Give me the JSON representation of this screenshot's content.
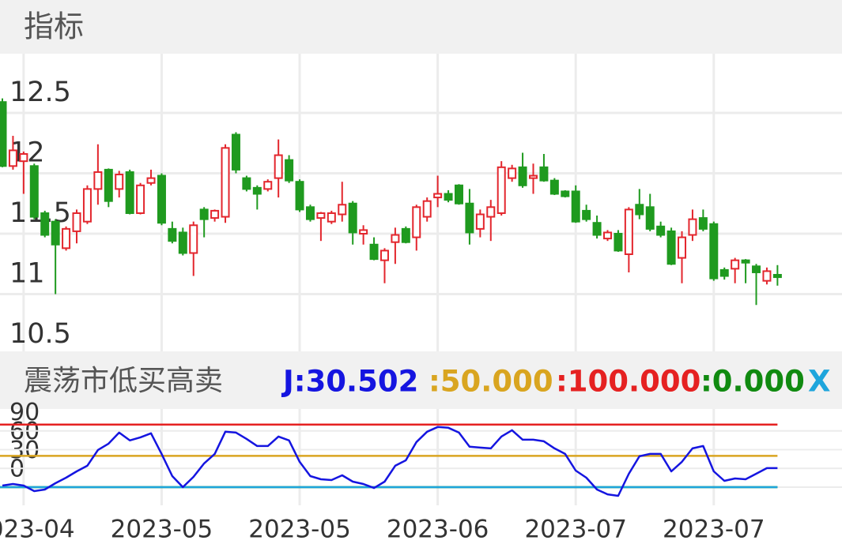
{
  "header": {
    "title": "指标"
  },
  "chart_data": [
    {
      "type": "candlestick",
      "categories": [
        null,
        null,
        "2023-04",
        null,
        null,
        null,
        null,
        null,
        null,
        null,
        null,
        null,
        null,
        null,
        null,
        "2023-05",
        null,
        null,
        null,
        null,
        null,
        null,
        null,
        null,
        null,
        null,
        null,
        null,
        "2023-05",
        null,
        null,
        null,
        null,
        null,
        null,
        null,
        null,
        null,
        null,
        null,
        null,
        "2023-06",
        null,
        null,
        null,
        null,
        null,
        null,
        null,
        null,
        null,
        null,
        null,
        null,
        "2023-07",
        null,
        null,
        null,
        null,
        null,
        null,
        null,
        null,
        null,
        null,
        null,
        null,
        "2023-07",
        null,
        null,
        null,
        null,
        null,
        null
      ],
      "open": [
        12.59,
        12.06,
        12.1,
        12.06,
        11.67,
        11.6,
        11.38,
        11.52,
        11.6,
        11.87,
        12.03,
        11.87,
        12.01,
        11.67,
        11.92,
        11.98,
        11.54,
        11.51,
        11.34,
        11.7,
        11.63,
        11.64,
        12.32,
        11.96,
        11.88,
        11.87,
        11.96,
        12.11,
        11.93,
        11.72,
        11.63,
        11.6,
        11.66,
        11.75,
        11.5,
        11.41,
        11.28,
        11.43,
        11.54,
        11.47,
        11.64,
        11.8,
        11.83,
        11.9,
        11.75,
        11.54,
        11.64,
        11.67,
        11.96,
        12.05,
        11.96,
        12.05,
        11.94,
        11.85,
        11.85,
        11.69,
        11.59,
        11.46,
        11.5,
        11.33,
        11.74,
        11.72,
        11.56,
        11.52,
        11.3,
        11.49,
        11.63,
        11.58,
        11.2,
        11.21,
        11.28,
        11.23,
        11.11,
        11.16
      ],
      "high": [
        12.62,
        12.31,
        12.18,
        12.08,
        11.69,
        11.62,
        11.56,
        11.7,
        11.9,
        12.24,
        12.04,
        12.02,
        12.03,
        11.92,
        12.03,
        12.0,
        11.6,
        11.55,
        11.6,
        11.72,
        11.7,
        12.24,
        12.34,
        11.98,
        11.9,
        11.95,
        12.28,
        12.15,
        11.95,
        11.74,
        11.68,
        11.69,
        11.93,
        11.77,
        11.57,
        11.47,
        11.38,
        11.55,
        11.56,
        11.74,
        11.8,
        11.98,
        11.86,
        11.91,
        11.87,
        11.7,
        11.78,
        12.1,
        12.07,
        12.17,
        12.08,
        12.16,
        11.96,
        11.86,
        11.9,
        11.74,
        11.65,
        11.53,
        11.53,
        11.72,
        11.87,
        11.83,
        11.6,
        11.55,
        11.52,
        11.7,
        11.7,
        11.6,
        11.22,
        11.3,
        11.29,
        11.25,
        11.22,
        11.24
      ],
      "low": [
        12.05,
        12.03,
        11.83,
        11.62,
        11.47,
        11.0,
        11.36,
        11.42,
        11.58,
        11.74,
        11.72,
        11.8,
        11.66,
        11.66,
        11.9,
        11.57,
        11.42,
        11.32,
        11.15,
        11.47,
        11.6,
        11.59,
        12.0,
        11.85,
        11.7,
        11.85,
        11.8,
        11.92,
        11.68,
        11.6,
        11.44,
        11.58,
        11.6,
        11.41,
        11.41,
        11.28,
        11.09,
        11.25,
        11.42,
        11.36,
        11.6,
        11.72,
        11.76,
        11.74,
        11.41,
        11.47,
        11.44,
        11.65,
        11.93,
        11.88,
        11.83,
        11.93,
        11.82,
        11.8,
        11.59,
        11.6,
        11.46,
        11.44,
        11.35,
        11.18,
        11.62,
        11.52,
        11.47,
        11.24,
        11.09,
        11.44,
        11.52,
        11.11,
        11.12,
        11.09,
        11.09,
        10.91,
        11.08,
        11.07
      ],
      "close": [
        12.06,
        12.19,
        12.16,
        11.64,
        11.49,
        11.41,
        11.54,
        11.67,
        11.87,
        12.01,
        11.77,
        11.99,
        11.67,
        11.9,
        11.96,
        11.59,
        11.44,
        11.34,
        11.57,
        11.62,
        11.69,
        12.21,
        12.03,
        11.87,
        11.83,
        11.93,
        12.15,
        11.94,
        11.7,
        11.62,
        11.67,
        11.67,
        11.74,
        11.51,
        11.53,
        11.29,
        11.36,
        11.49,
        11.43,
        11.72,
        11.77,
        11.83,
        11.78,
        11.75,
        11.51,
        11.66,
        11.72,
        12.05,
        12.04,
        11.9,
        11.98,
        11.94,
        11.83,
        11.81,
        11.6,
        11.62,
        11.49,
        11.51,
        11.36,
        11.7,
        11.66,
        11.54,
        11.49,
        11.25,
        11.47,
        11.62,
        11.54,
        11.13,
        11.15,
        11.28,
        11.26,
        11.18,
        11.19,
        11.14
      ],
      "up_color": "#e3262d",
      "down_color": "#1f9a1f",
      "ylim": [
        10.5,
        12.99
      ],
      "yticks": [
        10.5,
        11,
        11.5,
        12,
        12.5
      ],
      "grid": true
    },
    {
      "type": "line",
      "title": "震荡市低买高卖",
      "series": [
        {
          "name": "J:30.502",
          "color": "#1515e0",
          "values": [
            2.5,
            5.1,
            2.5,
            -6.3,
            -3.8,
            6.3,
            15.2,
            25.3,
            34.2,
            59.5,
            69.6,
            87.3,
            74.7,
            79.7,
            86.1,
            53.2,
            17.7,
            0,
            16.5,
            38,
            53.2,
            88.6,
            87.3,
            77.2,
            65.8,
            65.8,
            81,
            74.7,
            40.5,
            17.7,
            12.7,
            11.4,
            19,
            8.9,
            5.1,
            -1.3,
            8.9,
            34.2,
            43,
            72.2,
            88.6,
            96.2,
            94.9,
            87.3,
            64.6,
            63.3,
            62,
            81,
            91.1,
            75.9,
            75.9,
            73.4,
            62,
            53.2,
            26.6,
            15.2,
            -3.8,
            -11.4,
            -13.9,
            21.5,
            49.4,
            53.2,
            53.2,
            25.3,
            40.5,
            62,
            65.8,
            25.3,
            10.1,
            13.9,
            12.7,
            21.5,
            30.4,
            30.502
          ]
        }
      ],
      "lines": [
        {
          "name": ":50.000",
          "value": 50,
          "color": "#d9a520"
        },
        {
          "name": ":100.000",
          "value": 100,
          "color": "#e52121"
        },
        {
          "name": ":0.000",
          "value": 0,
          "color": "#108a10"
        },
        {
          "name": "X",
          "value": 0,
          "color": "#1ea5dc"
        }
      ],
      "ylim": [
        -29,
        125
      ],
      "yticks": [
        0,
        30,
        60,
        90
      ],
      "grid": true
    }
  ]
}
